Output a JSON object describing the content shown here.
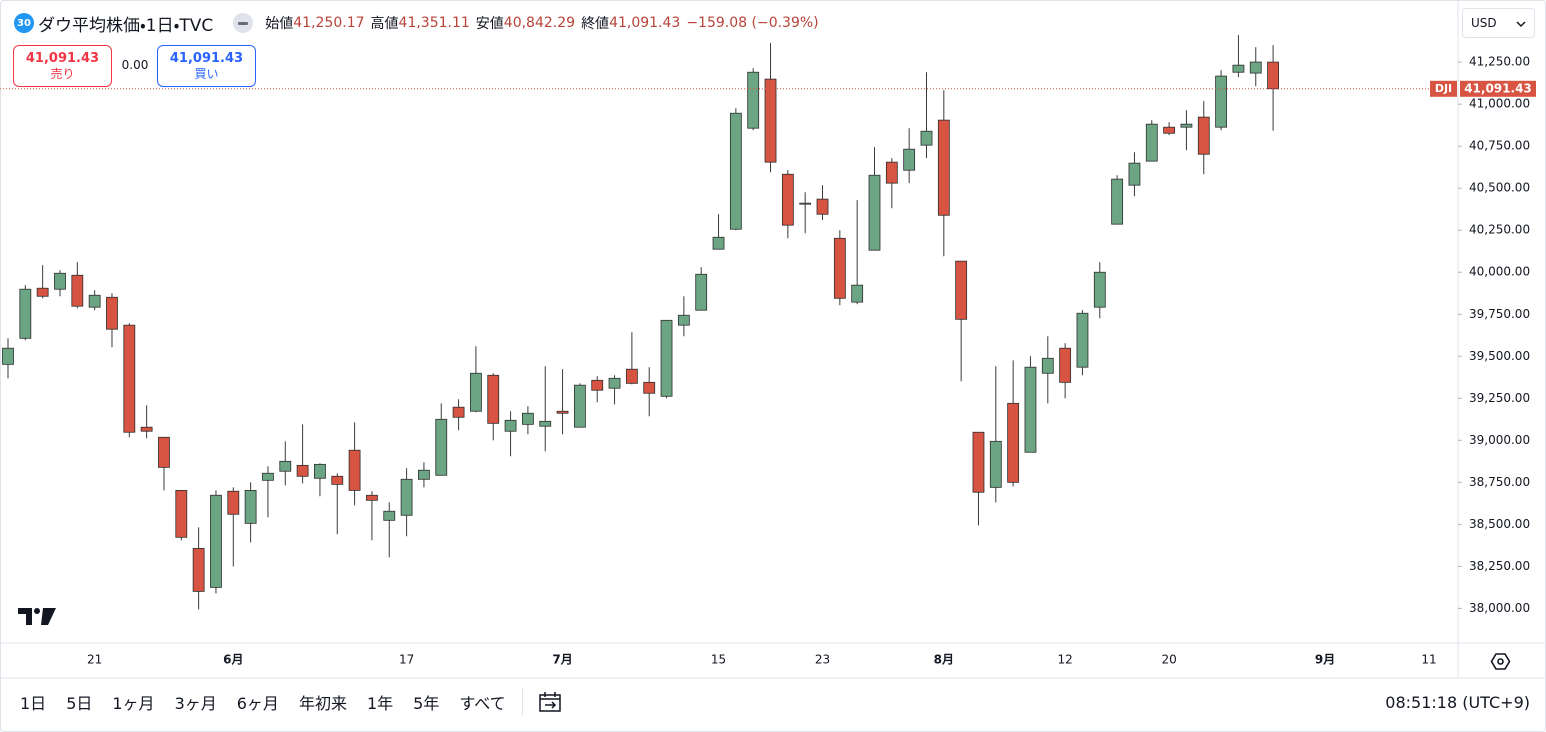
{
  "header": {
    "badge": "30",
    "title": "ダウ平均株価・1日・TVC",
    "ohlc": [
      {
        "label": "始値",
        "value": "41,250.17"
      },
      {
        "label": "高値",
        "value": "41,351.11"
      },
      {
        "label": "安値",
        "value": "40,842.29"
      },
      {
        "label": "終値",
        "value": "41,091.43"
      }
    ],
    "change": "−159.08 (−0.39%)"
  },
  "trade": {
    "sell_price": "41,091.43",
    "sell_label": "売り",
    "spread": "0.00",
    "buy_price": "41,091.43",
    "buy_label": "買い"
  },
  "currency": "USD",
  "toolbar": {
    "ranges": [
      "1日",
      "5日",
      "1ヶ月",
      "3ヶ月",
      "6ヶ月",
      "年初来",
      "1年",
      "5年",
      "すべて"
    ],
    "clock": "08:51:18 (UTC+9)"
  },
  "chart_data": {
    "type": "candlestick",
    "symbol_tag": "DJI",
    "last_price_label": "41,091.43",
    "up_color": "#6ba583",
    "down_color": "#d75442",
    "grid": false,
    "categories": [
      null,
      null,
      null,
      null,
      null,
      "21",
      null,
      null,
      null,
      null,
      null,
      null,
      null,
      "6月",
      null,
      null,
      null,
      null,
      null,
      null,
      null,
      null,
      null,
      "17",
      null,
      null,
      null,
      null,
      null,
      null,
      null,
      null,
      "7月",
      null,
      null,
      null,
      null,
      null,
      null,
      null,
      null,
      "15",
      null,
      null,
      null,
      null,
      null,
      "23",
      null,
      null,
      null,
      null,
      null,
      null,
      "8月",
      null,
      null,
      null,
      null,
      null,
      null,
      "12",
      null,
      null,
      null,
      null,
      null,
      "20",
      null,
      null,
      null,
      null,
      null,
      null,
      null,
      null,
      "9月",
      null,
      null,
      null,
      null,
      null,
      "11",
      null
    ],
    "open": [
      39452,
      39607,
      39905,
      39899,
      39982,
      39792,
      39851,
      39685,
      39078,
      39018,
      38702,
      38357,
      38125,
      38697,
      38506,
      38762,
      38816,
      38851,
      38774,
      38786,
      38941,
      38673,
      38524,
      38554,
      38768,
      38792,
      39197,
      39173,
      39387,
      39054,
      39095,
      39084,
      39173,
      39078,
      39357,
      39310,
      39423,
      39345,
      39262,
      39685,
      39774,
      40137,
      40256,
      40857,
      41149,
      40583,
      40405,
      40435,
      40202,
      39822,
      40131,
      40655,
      40607,
      40756,
      40905,
      40066,
      39048,
      38720,
      39220,
      38929,
      39399,
      39548,
      39435,
      39792,
      40286,
      40518,
      40661,
      40863,
      40863,
      40923,
      40863,
      41190,
      41185,
      41250.17,
      null,
      null,
      null,
      null,
      null,
      null,
      null,
      null,
      null,
      null
    ],
    "high": [
      39607,
      39923,
      40042,
      40012,
      40060,
      39893,
      39875,
      39697,
      39208,
      39018,
      38702,
      38482,
      38702,
      38720,
      38750,
      38845,
      38994,
      39095,
      38863,
      38804,
      39107,
      38697,
      38631,
      38834,
      38869,
      39220,
      39244,
      39560,
      39399,
      39173,
      39203,
      39441,
      39423,
      39339,
      39381,
      39387,
      39643,
      39435,
      39714,
      39857,
      40030,
      40345,
      40976,
      41214,
      41363,
      40607,
      40476,
      40518,
      40250,
      40429,
      40744,
      40679,
      40857,
      41190,
      41083,
      40066,
      39048,
      39441,
      39476,
      39500,
      39619,
      39578,
      39774,
      40060,
      40577,
      40714,
      40905,
      40893,
      40964,
      41018,
      41202,
      41411,
      41339,
      41351.11,
      null,
      null,
      null,
      null,
      null,
      null,
      null,
      null,
      null,
      null
    ],
    "low": [
      39369,
      39595,
      39845,
      39857,
      39786,
      39774,
      39554,
      39018,
      39012,
      38702,
      38405,
      37994,
      38089,
      38250,
      38393,
      38542,
      38732,
      38744,
      38667,
      38441,
      38613,
      38405,
      38304,
      38429,
      38720,
      38792,
      39060,
      39167,
      39000,
      38905,
      39036,
      38935,
      39036,
      39078,
      39226,
      39214,
      39333,
      39143,
      39250,
      39619,
      39774,
      40137,
      40250,
      40845,
      40595,
      40202,
      40232,
      40310,
      39804,
      39810,
      40131,
      40381,
      40530,
      40679,
      40095,
      39351,
      38494,
      38631,
      38726,
      38929,
      39220,
      39250,
      39387,
      39726,
      40286,
      40452,
      40661,
      40816,
      40726,
      40583,
      40845,
      41161,
      41107,
      40842.29,
      null,
      null,
      null,
      null,
      null,
      null,
      null,
      null,
      null,
      null
    ],
    "close": [
      39548,
      39899,
      39857,
      39994,
      39798,
      39863,
      39661,
      39048,
      39054,
      38839,
      38423,
      38101,
      38673,
      38560,
      38702,
      38804,
      38875,
      38786,
      38857,
      38738,
      38702,
      38643,
      38578,
      38768,
      38822,
      39125,
      39137,
      39399,
      39101,
      39119,
      39161,
      39113,
      39161,
      39328,
      39298,
      39369,
      39339,
      39280,
      39714,
      39744,
      39988,
      40208,
      40946,
      41190,
      40655,
      40280,
      40411,
      40345,
      39845,
      39923,
      40577,
      40530,
      40732,
      40839,
      40339,
      39720,
      38691,
      38994,
      38750,
      39435,
      39488,
      39345,
      39756,
      40000,
      40554,
      40649,
      40881,
      40827,
      40881,
      40702,
      41167,
      41232,
      41250.51,
      41091.43,
      null,
      null,
      null,
      null,
      null,
      null,
      null,
      null,
      null,
      null
    ],
    "ylim": [
      37800,
      41590
    ],
    "yticks": [
      {
        "value": 38000,
        "label": "38,000.00"
      },
      {
        "value": 38250,
        "label": "38,250.00"
      },
      {
        "value": 38500,
        "label": "38,500.00"
      },
      {
        "value": 38750,
        "label": "38,750.00"
      },
      {
        "value": 39000,
        "label": "39,000.00"
      },
      {
        "value": 39250,
        "label": "39,250.00"
      },
      {
        "value": 39500,
        "label": "39,500.00"
      },
      {
        "value": 39750,
        "label": "39,750.00"
      },
      {
        "value": 40000,
        "label": "40,000.00"
      },
      {
        "value": 40250,
        "label": "40,250.00"
      },
      {
        "value": 40500,
        "label": "40,500.00"
      },
      {
        "value": 40750,
        "label": "40,750.00"
      },
      {
        "value": 41000,
        "label": "41,000.00"
      },
      {
        "value": 41250,
        "label": "41,250.00"
      }
    ]
  }
}
